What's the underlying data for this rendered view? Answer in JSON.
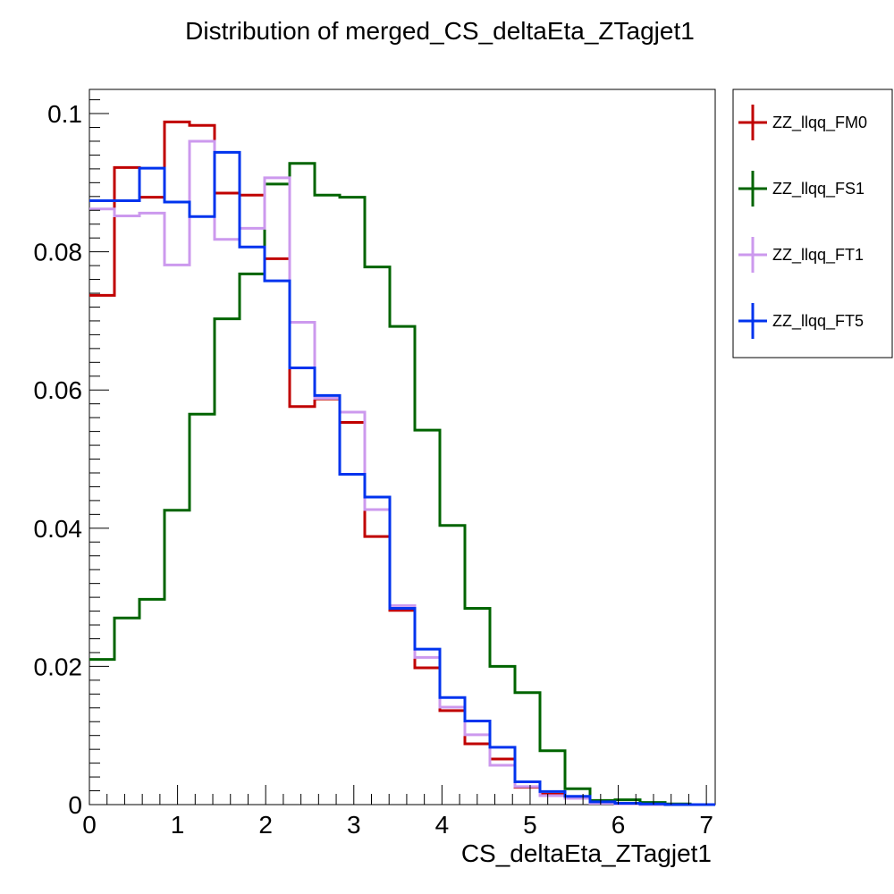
{
  "chart_data": {
    "type": "line",
    "title": "Distribution of merged_CS_deltaEta_ZTagjet1",
    "xlabel": "CS_deltaEta_ZTagjet1",
    "ylabel": "",
    "xlim": [
      0,
      7.1
    ],
    "ylim": [
      0,
      0.1035
    ],
    "x_ticks": [
      0,
      1,
      2,
      3,
      4,
      5,
      6,
      7
    ],
    "y_ticks": [
      0,
      0.02,
      0.04,
      0.06,
      0.08,
      0.1
    ],
    "x_tick_labels": [
      "0",
      "1",
      "2",
      "3",
      "4",
      "5",
      "6",
      "7"
    ],
    "y_tick_labels": [
      "0",
      "0.02",
      "0.04",
      "0.06",
      "0.08",
      "0.1"
    ],
    "grid": false,
    "legend_position": "right",
    "bin_edges": [
      0,
      0.284,
      0.568,
      0.852,
      1.136,
      1.42,
      1.704,
      1.988,
      2.272,
      2.556,
      2.84,
      3.124,
      3.408,
      3.692,
      3.976,
      4.26,
      4.544,
      4.828,
      5.112,
      5.396,
      5.68,
      5.964,
      6.248,
      6.532,
      6.816,
      7.1
    ],
    "series": [
      {
        "name": "ZZ_llqq_FM0",
        "color": "#c00000",
        "values": [
          0.0737,
          0.0922,
          0.0879,
          0.0988,
          0.0983,
          0.0885,
          0.0882,
          0.079,
          0.0576,
          0.0587,
          0.0553,
          0.0388,
          0.0281,
          0.0198,
          0.0136,
          0.0088,
          0.0066,
          0.0025,
          0.0015,
          0.0009,
          0.0003,
          0.0002,
          0.0001,
          0,
          0
        ]
      },
      {
        "name": "ZZ_llqq_FS1",
        "color": "#006400",
        "values": [
          0.021,
          0.027,
          0.0297,
          0.0426,
          0.0565,
          0.0703,
          0.0768,
          0.0898,
          0.0928,
          0.0882,
          0.0879,
          0.0778,
          0.0692,
          0.0542,
          0.0404,
          0.0284,
          0.02,
          0.0162,
          0.0078,
          0.0023,
          0.0006,
          0.0007,
          0.0003,
          0.0001,
          0
        ]
      },
      {
        "name": "ZZ_llqq_FT1",
        "color": "#cc99ee",
        "values": [
          0.0862,
          0.0852,
          0.0856,
          0.0781,
          0.096,
          0.0818,
          0.0834,
          0.0907,
          0.0698,
          0.0588,
          0.0568,
          0.0427,
          0.0288,
          0.0213,
          0.0141,
          0.0101,
          0.0057,
          0.0026,
          0.0013,
          0.0009,
          0.0002,
          0.0001,
          0,
          0,
          0
        ]
      },
      {
        "name": "ZZ_llqq_FT5",
        "color": "#0033ee",
        "values": [
          0.0874,
          0.0874,
          0.0921,
          0.0872,
          0.0851,
          0.0944,
          0.0807,
          0.0758,
          0.0632,
          0.0592,
          0.0478,
          0.0445,
          0.0284,
          0.0225,
          0.0155,
          0.0121,
          0.0083,
          0.0033,
          0.0019,
          0.0012,
          0.0004,
          0.0002,
          0.0001,
          0,
          0
        ]
      }
    ]
  }
}
